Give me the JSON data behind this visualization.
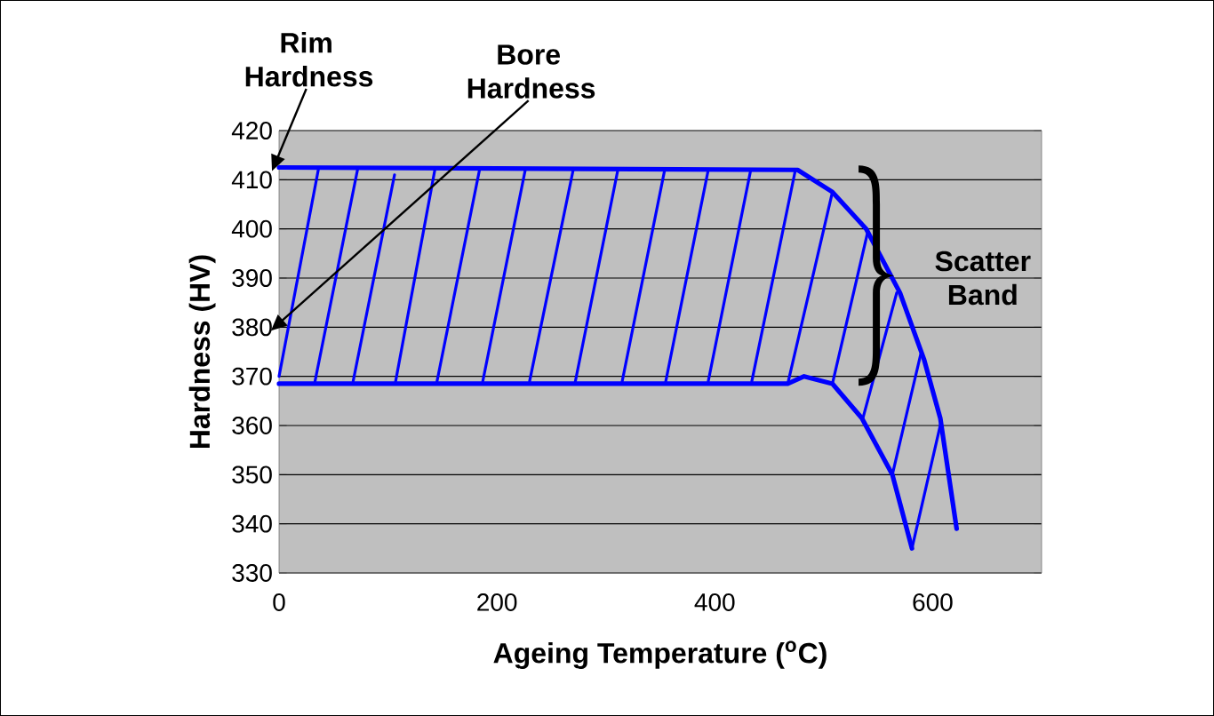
{
  "chart_data": {
    "type": "line",
    "xlabel": "Ageing Temperature ($^{o}$C)",
    "ylabel": "Hardness (HV)",
    "xlim": [
      0,
      700
    ],
    "ylim": [
      330,
      420
    ],
    "xticks": [
      0,
      200,
      400,
      600
    ],
    "yticks": [
      330,
      340,
      350,
      360,
      370,
      380,
      390,
      400,
      410,
      420
    ],
    "grid": "y",
    "marker": "none",
    "line_style": "solid",
    "series": [
      {
        "color": "#0000ff",
        "x": [
          0,
          476,
          508,
          539,
          570,
          592,
          607,
          622
        ],
        "values": [
          412.5,
          412,
          407.5,
          400,
          387,
          373.5,
          361.5,
          339
        ]
      },
      {
        "color": "#0000ff",
        "x": [
          0,
          467,
          482,
          508,
          535,
          563,
          581
        ],
        "values": [
          368.5,
          368.5,
          370,
          368.5,
          361.5,
          350,
          335
        ]
      },
      {
        "color": "#0000ff",
        "x": [
          0,
          36,
          null,
          33,
          72,
          null,
          68,
          106,
          null,
          107,
          143,
          null,
          145,
          184,
          null,
          187,
          226,
          null,
          230,
          270,
          null,
          272,
          311,
          null,
          315,
          354,
          null,
          355,
          394,
          null,
          394,
          433,
          null,
          434,
          474,
          null,
          467,
          508,
          null,
          508,
          540,
          null,
          536,
          567,
          null,
          563,
          589,
          null,
          581,
          608
        ],
        "values": [
          370,
          412,
          null,
          369,
          412,
          null,
          369,
          411,
          null,
          369,
          412,
          null,
          369,
          412,
          null,
          369,
          412,
          null,
          369,
          412,
          null,
          369,
          412,
          null,
          369,
          412,
          null,
          369,
          412,
          null,
          369,
          412,
          null,
          369,
          412,
          null,
          368.5,
          407.5,
          null,
          368.5,
          399,
          null,
          361.5,
          387,
          null,
          350,
          374.5,
          null,
          335,
          361
        ]
      }
    ],
    "annotations": [
      {
        "text": "Rim Hardness",
        "x": 0,
        "y": 412.5
      },
      "Bore Hardness",
      "Scatter Band"
    ]
  }
}
